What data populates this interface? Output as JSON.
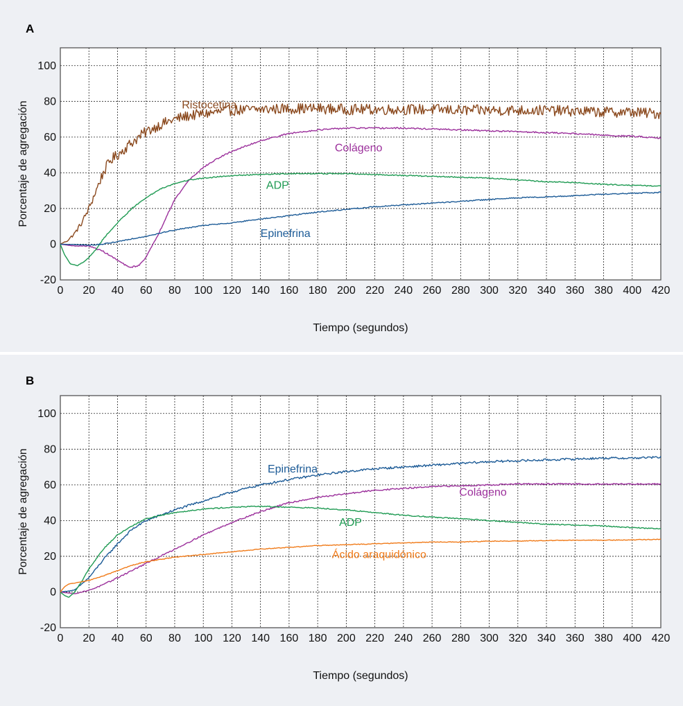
{
  "chart_data": [
    {
      "type": "line",
      "panel": "A",
      "xlabel": "Tiempo (segundos)",
      "ylabel": "Porcentaje de agregación",
      "xlim": [
        0,
        420
      ],
      "ylim": [
        -20,
        110
      ],
      "x_ticks": [
        0,
        20,
        40,
        60,
        80,
        100,
        120,
        140,
        160,
        180,
        200,
        220,
        240,
        260,
        280,
        300,
        320,
        340,
        360,
        380,
        400,
        420
      ],
      "y_ticks": [
        -20,
        0,
        20,
        40,
        60,
        80,
        100
      ],
      "grid": true,
      "legend": "inline labels",
      "series": [
        {
          "name": "Ristocetina",
          "color": "#8b4a1f",
          "label_at": [
            85,
            76
          ],
          "noise": 3,
          "points": [
            [
              0,
              0
            ],
            [
              5,
              2
            ],
            [
              10,
              6
            ],
            [
              15,
              12
            ],
            [
              20,
              20
            ],
            [
              25,
              30
            ],
            [
              30,
              40
            ],
            [
              35,
              47
            ],
            [
              40,
              50
            ],
            [
              50,
              57
            ],
            [
              60,
              63
            ],
            [
              70,
              67
            ],
            [
              80,
              70
            ],
            [
              90,
              72
            ],
            [
              100,
              73
            ],
            [
              110,
              74
            ],
            [
              120,
              75
            ],
            [
              140,
              75.5
            ],
            [
              160,
              76
            ],
            [
              180,
              76
            ],
            [
              200,
              75.5
            ],
            [
              220,
              75.5
            ],
            [
              240,
              75.5
            ],
            [
              260,
              75.5
            ],
            [
              280,
              75
            ],
            [
              300,
              75
            ],
            [
              320,
              75
            ],
            [
              340,
              75
            ],
            [
              360,
              74.5
            ],
            [
              380,
              74
            ],
            [
              400,
              74
            ],
            [
              420,
              73
            ]
          ]
        },
        {
          "name": "Colágeno",
          "color": "#9b2f9b",
          "label_at": [
            192,
            52
          ],
          "noise": 0.4,
          "points": [
            [
              0,
              0
            ],
            [
              10,
              -1
            ],
            [
              20,
              -1
            ],
            [
              30,
              -4
            ],
            [
              40,
              -9
            ],
            [
              48,
              -13
            ],
            [
              55,
              -12
            ],
            [
              60,
              -7
            ],
            [
              65,
              0
            ],
            [
              70,
              8
            ],
            [
              75,
              17
            ],
            [
              80,
              25
            ],
            [
              90,
              36
            ],
            [
              100,
              43
            ],
            [
              110,
              48
            ],
            [
              120,
              52
            ],
            [
              140,
              58
            ],
            [
              160,
              62
            ],
            [
              180,
              64
            ],
            [
              200,
              65
            ],
            [
              220,
              65
            ],
            [
              240,
              65
            ],
            [
              260,
              64.5
            ],
            [
              280,
              64
            ],
            [
              300,
              63.5
            ],
            [
              320,
              63
            ],
            [
              340,
              62.5
            ],
            [
              360,
              62
            ],
            [
              380,
              61
            ],
            [
              400,
              60.5
            ],
            [
              420,
              59.5
            ]
          ]
        },
        {
          "name": "ADP",
          "color": "#1e9a52",
          "label_at": [
            144,
            31
          ],
          "noise": 0.3,
          "points": [
            [
              0,
              0
            ],
            [
              3,
              -6
            ],
            [
              7,
              -11
            ],
            [
              12,
              -12
            ],
            [
              18,
              -9
            ],
            [
              25,
              -3
            ],
            [
              30,
              3
            ],
            [
              40,
              12
            ],
            [
              50,
              20
            ],
            [
              60,
              26
            ],
            [
              70,
              31
            ],
            [
              80,
              34
            ],
            [
              90,
              36
            ],
            [
              100,
              37
            ],
            [
              120,
              38.5
            ],
            [
              140,
              39
            ],
            [
              160,
              39.5
            ],
            [
              180,
              39.5
            ],
            [
              200,
              39.5
            ],
            [
              220,
              39
            ],
            [
              240,
              38.5
            ],
            [
              260,
              38
            ],
            [
              280,
              37.5
            ],
            [
              300,
              37
            ],
            [
              320,
              36
            ],
            [
              340,
              35
            ],
            [
              360,
              34.5
            ],
            [
              380,
              33.5
            ],
            [
              400,
              33
            ],
            [
              420,
              32.5
            ]
          ]
        },
        {
          "name": "Epinefrina",
          "color": "#1b5a96",
          "label_at": [
            140,
            4
          ],
          "noise": 0.3,
          "points": [
            [
              0,
              0
            ],
            [
              20,
              -0.5
            ],
            [
              30,
              0
            ],
            [
              40,
              1.5
            ],
            [
              60,
              4.5
            ],
            [
              80,
              8
            ],
            [
              100,
              10.5
            ],
            [
              120,
              12
            ],
            [
              140,
              14
            ],
            [
              160,
              16
            ],
            [
              180,
              18
            ],
            [
              200,
              19.5
            ],
            [
              220,
              21
            ],
            [
              240,
              22
            ],
            [
              260,
              23
            ],
            [
              280,
              24
            ],
            [
              300,
              25
            ],
            [
              320,
              26
            ],
            [
              340,
              26.5
            ],
            [
              360,
              27.2
            ],
            [
              380,
              28
            ],
            [
              400,
              28.5
            ],
            [
              420,
              29
            ]
          ]
        }
      ]
    },
    {
      "type": "line",
      "panel": "B",
      "xlabel": "Tiempo (segundos)",
      "ylabel": "Porcentaje de agregación",
      "xlim": [
        0,
        420
      ],
      "ylim": [
        -20,
        110
      ],
      "x_ticks": [
        0,
        20,
        40,
        60,
        80,
        100,
        120,
        140,
        160,
        180,
        200,
        220,
        240,
        260,
        280,
        300,
        320,
        340,
        360,
        380,
        400,
        420
      ],
      "y_ticks": [
        -20,
        0,
        20,
        40,
        60,
        80,
        100
      ],
      "grid": true,
      "legend": "inline labels",
      "series": [
        {
          "name": "Epinefrina",
          "color": "#1b5a96",
          "label_at": [
            145,
            67
          ],
          "noise": 0.6,
          "points": [
            [
              0,
              0
            ],
            [
              10,
              1
            ],
            [
              20,
              8
            ],
            [
              30,
              18
            ],
            [
              40,
              27
            ],
            [
              50,
              35
            ],
            [
              60,
              40
            ],
            [
              70,
              43
            ],
            [
              80,
              46
            ],
            [
              100,
              51
            ],
            [
              120,
              56
            ],
            [
              140,
              60
            ],
            [
              160,
              63
            ],
            [
              180,
              65.5
            ],
            [
              200,
              67.5
            ],
            [
              220,
              69
            ],
            [
              240,
              70
            ],
            [
              260,
              71
            ],
            [
              280,
              72
            ],
            [
              300,
              73
            ],
            [
              320,
              73.5
            ],
            [
              340,
              74
            ],
            [
              360,
              74.5
            ],
            [
              380,
              75
            ],
            [
              400,
              75
            ],
            [
              420,
              75.5
            ]
          ]
        },
        {
          "name": "Colágeno",
          "color": "#9b2f9b",
          "label_at": [
            279,
            54
          ],
          "noise": 0.4,
          "points": [
            [
              0,
              0
            ],
            [
              10,
              -1
            ],
            [
              20,
              1
            ],
            [
              30,
              4
            ],
            [
              40,
              8
            ],
            [
              50,
              12
            ],
            [
              60,
              16
            ],
            [
              70,
              20
            ],
            [
              80,
              24
            ],
            [
              90,
              28
            ],
            [
              100,
              32
            ],
            [
              120,
              39
            ],
            [
              140,
              45
            ],
            [
              160,
              50
            ],
            [
              180,
              53
            ],
            [
              200,
              55
            ],
            [
              220,
              57
            ],
            [
              240,
              58
            ],
            [
              260,
              59
            ],
            [
              280,
              59.5
            ],
            [
              300,
              60
            ],
            [
              320,
              60.5
            ],
            [
              340,
              60.5
            ],
            [
              360,
              60.5
            ],
            [
              380,
              60.5
            ],
            [
              400,
              60.5
            ],
            [
              420,
              60.5
            ]
          ]
        },
        {
          "name": "ADP",
          "color": "#1e9a52",
          "label_at": [
            195,
            37
          ],
          "noise": 0.3,
          "points": [
            [
              0,
              0
            ],
            [
              3,
              -2
            ],
            [
              6,
              -3
            ],
            [
              10,
              0
            ],
            [
              15,
              6
            ],
            [
              20,
              13
            ],
            [
              30,
              24
            ],
            [
              40,
              32
            ],
            [
              50,
              37
            ],
            [
              60,
              41
            ],
            [
              70,
              43
            ],
            [
              80,
              44.5
            ],
            [
              100,
              46.5
            ],
            [
              120,
              47.5
            ],
            [
              140,
              48
            ],
            [
              160,
              47.5
            ],
            [
              180,
              47
            ],
            [
              200,
              46
            ],
            [
              220,
              44.5
            ],
            [
              240,
              43
            ],
            [
              260,
              42
            ],
            [
              280,
              41
            ],
            [
              300,
              40
            ],
            [
              320,
              39
            ],
            [
              340,
              38
            ],
            [
              360,
              37.5
            ],
            [
              380,
              37
            ],
            [
              400,
              36
            ],
            [
              420,
              35.5
            ]
          ]
        },
        {
          "name": "Ácido araquidónico",
          "color": "#f07a18",
          "label_at": [
            190,
            19
          ],
          "noise": 0.2,
          "points": [
            [
              0,
              0
            ],
            [
              3,
              3
            ],
            [
              6,
              4.5
            ],
            [
              10,
              5
            ],
            [
              20,
              6.5
            ],
            [
              30,
              9
            ],
            [
              40,
              12
            ],
            [
              50,
              15
            ],
            [
              60,
              17
            ],
            [
              80,
              19.5
            ],
            [
              100,
              21
            ],
            [
              120,
              22.5
            ],
            [
              140,
              24
            ],
            [
              160,
              25
            ],
            [
              180,
              26
            ],
            [
              200,
              26.5
            ],
            [
              220,
              27
            ],
            [
              240,
              27.5
            ],
            [
              260,
              28
            ],
            [
              280,
              28
            ],
            [
              300,
              28.5
            ],
            [
              320,
              28.5
            ],
            [
              340,
              28.8
            ],
            [
              360,
              29
            ],
            [
              380,
              29
            ],
            [
              400,
              29.2
            ],
            [
              420,
              29.5
            ]
          ]
        }
      ]
    }
  ]
}
